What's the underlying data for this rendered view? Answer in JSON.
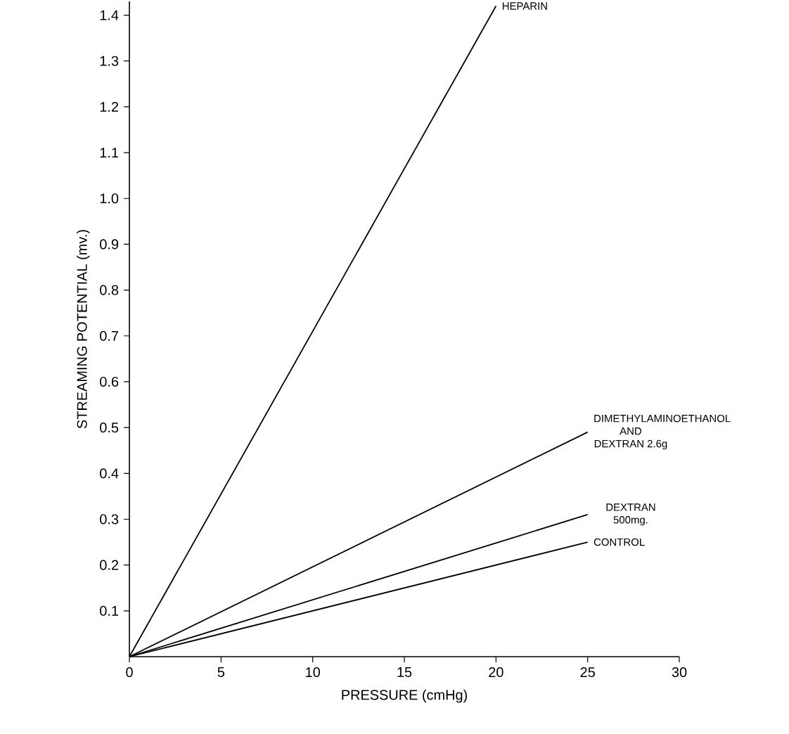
{
  "chart_data": {
    "type": "line",
    "xlabel": "PRESSURE (cmHg)",
    "ylabel": "STREAMING POTENTIAL (mv.)",
    "x": [
      0,
      25
    ],
    "series": [
      {
        "name": "HEPARIN",
        "x": [
          0,
          20
        ],
        "values": [
          0,
          1.42
        ],
        "color": "#000000"
      },
      {
        "name": "DIMETHYLAMINOETHANOL AND DEXTRAN 2.6g",
        "values": [
          0,
          0.49
        ],
        "color": "#000000"
      },
      {
        "name": "DEXTRAN 500mg.",
        "values": [
          0,
          0.31
        ],
        "color": "#000000"
      },
      {
        "name": "CONTROL",
        "values": [
          0,
          0.25
        ],
        "color": "#000000"
      }
    ],
    "xlim": [
      0,
      30
    ],
    "xticks": [
      0,
      5,
      10,
      15,
      20,
      25,
      30
    ],
    "ylim": [
      0,
      1.43
    ],
    "yticks": [
      0.1,
      0.2,
      0.3,
      0.4,
      0.5,
      0.6,
      0.7,
      0.8,
      0.9,
      {
        "value": 1.0,
        "label": "1.0"
      },
      1.1,
      1.2,
      1.3,
      1.4
    ],
    "marker": "none",
    "line_style": "solid",
    "grid": false
  }
}
